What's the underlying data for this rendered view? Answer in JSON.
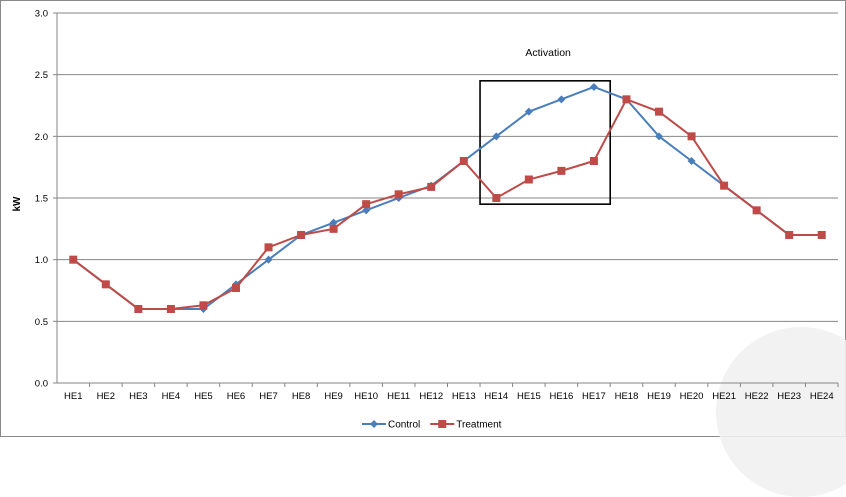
{
  "chart_data": {
    "type": "line",
    "title": "",
    "xlabel": "",
    "ylabel": "kW",
    "ylim": [
      0,
      3.0
    ],
    "yticks": [
      "0.0",
      "0.5",
      "1.0",
      "1.5",
      "2.0",
      "2.5",
      "3.0"
    ],
    "categories": [
      "HE1",
      "HE2",
      "HE3",
      "HE4",
      "HE5",
      "HE6",
      "HE7",
      "HE8",
      "HE9",
      "HE10",
      "HE11",
      "HE12",
      "HE13",
      "HE14",
      "HE15",
      "HE16",
      "HE17",
      "HE18",
      "HE19",
      "HE20",
      "HE21",
      "HE22",
      "HE23",
      "HE24"
    ],
    "series": [
      {
        "name": "Control",
        "color": "#4a7ebb",
        "marker": "diamond",
        "values": [
          1.0,
          0.8,
          0.6,
          0.6,
          0.6,
          0.8,
          1.0,
          1.2,
          1.3,
          1.4,
          1.5,
          1.6,
          1.8,
          2.0,
          2.2,
          2.3,
          2.4,
          2.3,
          2.0,
          1.8,
          1.6,
          1.4,
          1.2,
          1.2
        ]
      },
      {
        "name": "Treatment",
        "color": "#be4b48",
        "marker": "square",
        "values": [
          1.0,
          0.8,
          0.6,
          0.6,
          0.63,
          0.77,
          1.1,
          1.2,
          1.25,
          1.45,
          1.53,
          1.59,
          1.8,
          1.5,
          1.65,
          1.72,
          1.8,
          2.3,
          2.2,
          2.0,
          1.6,
          1.4,
          1.2,
          1.2
        ]
      }
    ],
    "annotation": {
      "text": "Activation",
      "box_x": [
        "HE13",
        "HE17"
      ],
      "box_y": [
        1.45,
        2.45
      ]
    },
    "grid": "horizontal",
    "legend": "bottom"
  }
}
